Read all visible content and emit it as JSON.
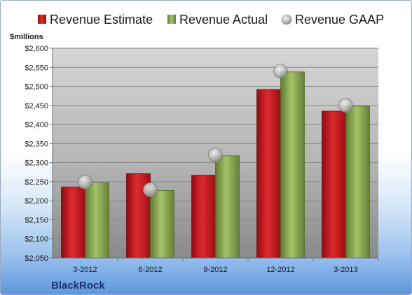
{
  "unit_label": "$millions",
  "brand": "BlackRock",
  "chart_data": {
    "type": "bar",
    "categories": [
      "3-2012",
      "6-2012",
      "9-2012",
      "12-2012",
      "3-2013"
    ],
    "series": [
      {
        "name": "Revenue Estimate",
        "type": "bar",
        "color": "#d11a22",
        "values": [
          2236,
          2271,
          2267,
          2492,
          2435
        ]
      },
      {
        "name": "Revenue Actual",
        "type": "bar",
        "color": "#8fae55",
        "values": [
          2247,
          2227,
          2318,
          2538,
          2448
        ]
      },
      {
        "name": "Revenue GAAP",
        "type": "scatter",
        "color": "#b4b4b4",
        "values": [
          2249,
          2229,
          2320,
          2540,
          2450
        ]
      }
    ],
    "ylim": [
      2050,
      2600
    ],
    "y_ticks": [
      "$2,050",
      "$2,100",
      "$2,150",
      "$2,200",
      "$2,250",
      "$2,300",
      "$2,350",
      "$2,400",
      "$2,450",
      "$2,500",
      "$2,550",
      "$2,600"
    ],
    "grid": true,
    "legend_position": "top"
  }
}
